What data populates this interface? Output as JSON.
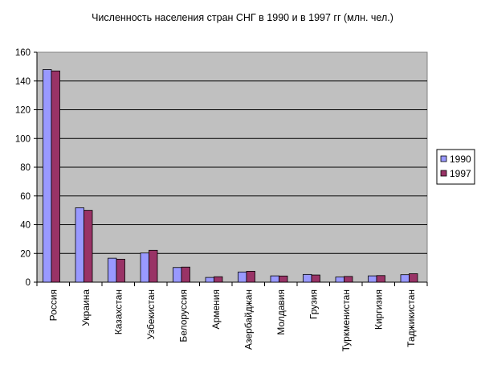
{
  "chart_data": {
    "type": "bar",
    "title": "Численность населения стран СНГ в 1990 и в 1997 гг (млн. чел.)",
    "xlabel": "",
    "ylabel": "",
    "ylim": [
      0,
      160
    ],
    "yticks": [
      0,
      20,
      40,
      60,
      80,
      100,
      120,
      140,
      160
    ],
    "grid": true,
    "legend_position": "right",
    "plot_background": "#c0c0c0",
    "categories": [
      "Россия",
      "Украина",
      "Казахстан",
      "Узбекистан",
      "Белоруссия",
      "Армения",
      "Азербайджан",
      "Молдавия",
      "Грузия",
      "Туркменистан",
      "Киргизия",
      "Таджикистан"
    ],
    "series": [
      {
        "name": "1990",
        "color": "#9999ff",
        "values": [
          148.0,
          51.8,
          16.7,
          20.3,
          10.2,
          3.3,
          7.1,
          4.4,
          5.4,
          3.6,
          4.4,
          5.2
        ]
      },
      {
        "name": "1997",
        "color": "#993366",
        "values": [
          147.0,
          50.0,
          16.0,
          22.2,
          10.5,
          3.8,
          7.6,
          4.3,
          5.0,
          4.0,
          4.6,
          5.9
        ]
      }
    ]
  }
}
